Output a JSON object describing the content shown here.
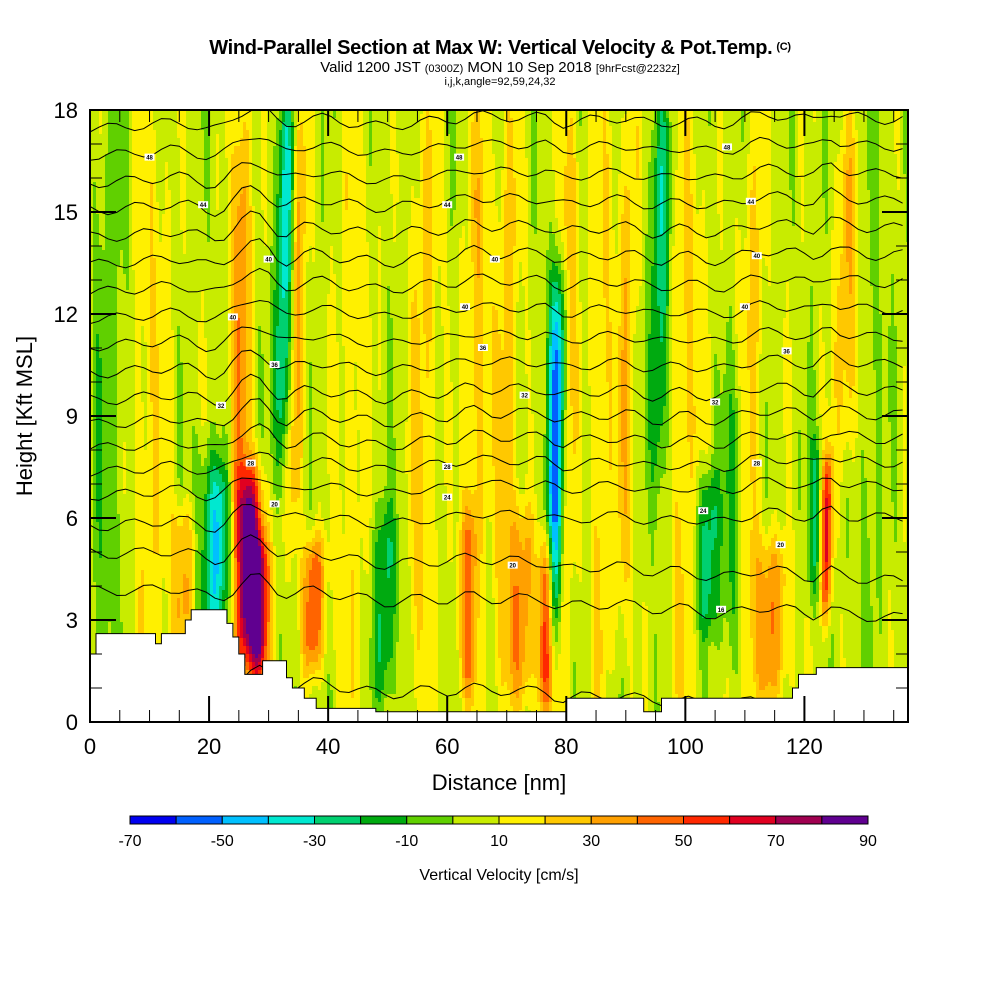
{
  "header": {
    "title": "Wind-Parallel Section at Max W: Vertical Velocity & Pot.Temp.",
    "copyright": "(C)",
    "valid_prefix": "Valid 1200 JST",
    "valid_utc": "(0300Z)",
    "valid_date": "MON 10 Sep 2018",
    "forecast": "[9hrFcst@2232z]",
    "indices": "i,j,k,angle=92,59,24,32"
  },
  "chart_data": {
    "type": "heatmap",
    "title": "Wind-Parallel Section at Max W: Vertical Velocity & Pot.Temp.",
    "xlabel": "Distance [nm]",
    "ylabel": "Height [Kft MSL]",
    "xlim": [
      0,
      137.4
    ],
    "ylim": [
      0,
      18
    ],
    "x_ticks": [
      0,
      20,
      40,
      60,
      80,
      100,
      120
    ],
    "x_tick_labels": [
      "0",
      "20",
      "40",
      "60",
      "80",
      "100",
      "120"
    ],
    "x_minor_step": 5,
    "y_ticks": [
      0,
      3,
      6,
      9,
      12,
      15,
      18
    ],
    "y_tick_labels": [
      "0",
      "3",
      "6",
      "9",
      "12",
      "15",
      "18"
    ],
    "y_minor_step": 1,
    "colorbar": {
      "title": "Vertical Velocity [cm/s]",
      "levels": [
        -70,
        -60,
        -50,
        -40,
        -30,
        -20,
        -10,
        0,
        10,
        20,
        30,
        40,
        50,
        60,
        70,
        80,
        90
      ],
      "tick_labels": [
        "-70",
        "-50",
        "-30",
        "-10",
        "10",
        "30",
        "50",
        "70",
        "90"
      ],
      "colors": [
        "#0000f0",
        "#0060ff",
        "#00c0ff",
        "#00e8d0",
        "#00d070",
        "#00aa10",
        "#60d000",
        "#c8ec00",
        "#fff000",
        "#ffc800",
        "#ffa000",
        "#ff6400",
        "#ff2800",
        "#e00020",
        "#a00050",
        "#600090"
      ]
    },
    "background_w": 5,
    "w_features": [
      {
        "x": 3,
        "width": 3,
        "z_bottom": 0,
        "z_top": 18,
        "w": -12
      },
      {
        "x": 10,
        "width": 3,
        "z_bottom": 0,
        "z_top": 18,
        "w": 14
      },
      {
        "x": 16,
        "width": 2.2,
        "z_bottom": 2.5,
        "z_top": 6,
        "w": 28
      },
      {
        "x": 20,
        "width": 2.5,
        "z_bottom": 3,
        "z_top": 8,
        "w": -18
      },
      {
        "x": 22,
        "width": 2,
        "z_bottom": 3,
        "z_top": 7,
        "w": -35
      },
      {
        "x": 27,
        "width": 2.2,
        "z_bottom": 2,
        "z_top": 7,
        "w": 85
      },
      {
        "x": 29,
        "width": 1.6,
        "z_bottom": 1.5,
        "z_top": 5,
        "w": 55
      },
      {
        "x": 25,
        "width": 1.6,
        "z_bottom": 6,
        "z_top": 18,
        "w": 35
      },
      {
        "x": 32.5,
        "width": 1.5,
        "z_bottom": 8,
        "z_top": 18,
        "w": -45
      },
      {
        "x": 34.5,
        "width": 1.5,
        "z_bottom": 6,
        "z_top": 18,
        "w": 30
      },
      {
        "x": 38,
        "width": 1.8,
        "z_bottom": 2,
        "z_top": 5,
        "w": 45
      },
      {
        "x": 44,
        "width": 3,
        "z_bottom": 0,
        "z_top": 18,
        "w": 12
      },
      {
        "x": 50,
        "width": 2,
        "z_bottom": 1,
        "z_top": 6,
        "w": -28
      },
      {
        "x": 56,
        "width": 2.5,
        "z_bottom": 0,
        "z_top": 18,
        "w": 18
      },
      {
        "x": 64,
        "width": 1.6,
        "z_bottom": 1,
        "z_top": 6,
        "w": 40
      },
      {
        "x": 65,
        "width": 2,
        "z_bottom": 6,
        "z_top": 18,
        "w": 22
      },
      {
        "x": 70,
        "width": 2,
        "z_bottom": 0,
        "z_top": 18,
        "w": 20
      },
      {
        "x": 73,
        "width": 2.2,
        "z_bottom": 1,
        "z_top": 6,
        "w": 30
      },
      {
        "x": 77,
        "width": 1.3,
        "z_bottom": 0.5,
        "z_top": 5,
        "w": 55
      },
      {
        "x": 78.5,
        "width": 1.6,
        "z_bottom": 3,
        "z_top": 13,
        "w": -65
      },
      {
        "x": 80,
        "width": 1.5,
        "z_bottom": 2,
        "z_top": 18,
        "w": 30
      },
      {
        "x": 86,
        "width": 2,
        "z_bottom": 0,
        "z_top": 18,
        "w": 16
      },
      {
        "x": 90,
        "width": 1.5,
        "z_bottom": 3,
        "z_top": 18,
        "w": 22
      },
      {
        "x": 95.5,
        "width": 1.6,
        "z_bottom": 7,
        "z_top": 18,
        "w": -32
      },
      {
        "x": 100,
        "width": 2.5,
        "z_bottom": 0,
        "z_top": 18,
        "w": 18
      },
      {
        "x": 104,
        "width": 2,
        "z_bottom": 3,
        "z_top": 7,
        "w": -32
      },
      {
        "x": 108.5,
        "width": 2,
        "z_bottom": 2,
        "z_top": 10,
        "w": -18
      },
      {
        "x": 111,
        "width": 2,
        "z_bottom": 0,
        "z_top": 18,
        "w": 18
      },
      {
        "x": 115,
        "width": 3,
        "z_bottom": 1,
        "z_top": 5,
        "w": 32
      },
      {
        "x": 122,
        "width": 1.2,
        "z_bottom": 4,
        "z_top": 8,
        "w": -25
      },
      {
        "x": 124,
        "width": 1,
        "z_bottom": 3.5,
        "z_top": 7.5,
        "w": 55
      },
      {
        "x": 127,
        "width": 2,
        "z_bottom": 8,
        "z_top": 17,
        "w": 25
      },
      {
        "x": 131,
        "width": 2,
        "z_bottom": 0,
        "z_top": 18,
        "w": -8
      }
    ],
    "isentropes": {
      "heights_at_x0": [
        1.2,
        3.9,
        5.0,
        5.8,
        6.7,
        7.4,
        8.1,
        8.8,
        9.5,
        10.3,
        11.1,
        11.9,
        12.7,
        13.5,
        14.3,
        15.1,
        15.9,
        16.7,
        17.5
      ],
      "labels": [
        {
          "x": 10,
          "z": 16.6,
          "text": "48"
        },
        {
          "x": 19,
          "z": 15.2,
          "text": "44"
        },
        {
          "x": 30,
          "z": 13.6,
          "text": "40"
        },
        {
          "x": 24,
          "z": 11.9,
          "text": "40"
        },
        {
          "x": 31,
          "z": 10.5,
          "text": "36"
        },
        {
          "x": 22,
          "z": 9.3,
          "text": "32"
        },
        {
          "x": 27,
          "z": 7.6,
          "text": "28"
        },
        {
          "x": 31,
          "z": 6.4,
          "text": "20"
        },
        {
          "x": 62,
          "z": 16.6,
          "text": "48"
        },
        {
          "x": 60,
          "z": 15.2,
          "text": "44"
        },
        {
          "x": 68,
          "z": 13.6,
          "text": "40"
        },
        {
          "x": 63,
          "z": 12.2,
          "text": "40"
        },
        {
          "x": 66,
          "z": 11.0,
          "text": "36"
        },
        {
          "x": 73,
          "z": 9.6,
          "text": "32"
        },
        {
          "x": 60,
          "z": 7.5,
          "text": "28"
        },
        {
          "x": 60,
          "z": 6.6,
          "text": "24"
        },
        {
          "x": 71,
          "z": 4.6,
          "text": "20"
        },
        {
          "x": 107,
          "z": 16.9,
          "text": "48"
        },
        {
          "x": 111,
          "z": 15.3,
          "text": "44"
        },
        {
          "x": 112,
          "z": 13.7,
          "text": "40"
        },
        {
          "x": 110,
          "z": 12.2,
          "text": "40"
        },
        {
          "x": 117,
          "z": 10.9,
          "text": "36"
        },
        {
          "x": 105,
          "z": 9.4,
          "text": "32"
        },
        {
          "x": 112,
          "z": 7.6,
          "text": "28"
        },
        {
          "x": 103,
          "z": 6.2,
          "text": "24"
        },
        {
          "x": 116,
          "z": 5.2,
          "text": "20"
        },
        {
          "x": 106,
          "z": 3.3,
          "text": "16"
        }
      ]
    },
    "terrain": {
      "x": [
        0,
        0,
        1,
        1,
        5,
        5,
        11,
        11,
        12,
        12,
        16,
        16,
        17,
        17,
        19,
        19,
        23,
        23,
        24,
        24,
        25,
        25,
        26,
        26,
        29,
        29,
        33,
        33,
        34,
        34,
        36,
        36,
        38,
        38,
        42,
        42,
        48,
        48,
        54,
        54,
        78,
        78,
        80,
        80,
        93,
        93,
        96,
        96,
        104,
        104,
        118,
        118,
        119,
        119,
        122,
        122,
        128,
        128,
        137.4,
        137.4
      ],
      "z": [
        0,
        2.0,
        2.0,
        2.6,
        2.6,
        2.6,
        2.6,
        2.3,
        2.3,
        2.6,
        2.6,
        3.0,
        3.0,
        3.3,
        3.3,
        3.3,
        3.3,
        2.9,
        2.9,
        2.5,
        2.5,
        2.0,
        2.0,
        1.4,
        1.4,
        1.8,
        1.8,
        1.3,
        1.3,
        1.0,
        1.0,
        0.7,
        0.7,
        0.4,
        0.4,
        0.4,
        0.4,
        0.3,
        0.3,
        0.3,
        0.3,
        0.3,
        0.3,
        0.7,
        0.7,
        0.3,
        0.3,
        0.7,
        0.7,
        0.7,
        0.7,
        1.0,
        1.0,
        1.4,
        1.4,
        1.6,
        1.6,
        1.6,
        1.6,
        0
      ]
    }
  }
}
